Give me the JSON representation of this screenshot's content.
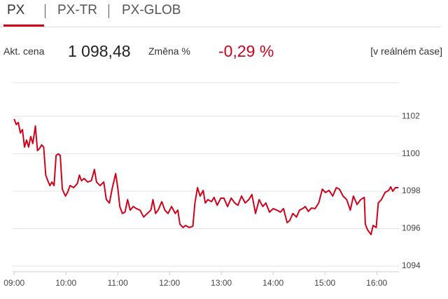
{
  "tabs": [
    "PX",
    "PX-TR",
    "PX-GLOB"
  ],
  "quote": {
    "label": "Akt. cena",
    "price": "1 098,48",
    "change_label": "Změna %",
    "change": "-0,29 %",
    "realtime": "[v reálném čase]"
  },
  "chart_data": {
    "type": "line",
    "color": "#d0021b",
    "x": [
      9.0,
      9.04,
      9.08,
      9.12,
      9.16,
      9.2,
      9.24,
      9.28,
      9.32,
      9.36,
      9.41,
      9.45,
      9.49,
      9.53,
      9.57,
      9.61,
      9.65,
      9.69,
      9.73,
      9.77,
      9.81,
      9.85,
      9.89,
      9.93,
      9.99,
      10.03,
      10.08,
      10.15,
      10.22,
      10.26,
      10.3,
      10.35,
      10.42,
      10.49,
      10.55,
      10.59,
      10.66,
      10.73,
      10.78,
      10.84,
      10.89,
      10.96,
      11.0,
      11.04,
      11.09,
      11.14,
      11.19,
      11.24,
      11.3,
      11.36,
      11.43,
      11.5,
      11.57,
      11.64,
      11.68,
      11.73,
      11.78,
      11.85,
      11.91,
      11.97,
      12.04,
      12.11,
      12.16,
      12.2,
      12.26,
      12.31,
      12.38,
      12.45,
      12.49,
      12.54,
      12.59,
      12.65,
      12.69,
      12.74,
      12.81,
      12.86,
      12.92,
      12.99,
      13.05,
      13.12,
      13.19,
      13.26,
      13.32,
      13.39,
      13.46,
      13.53,
      13.59,
      13.66,
      13.73,
      13.8,
      13.86,
      13.93,
      14.0,
      14.07,
      14.14,
      14.2,
      14.27,
      14.32,
      14.38,
      14.45,
      14.51,
      14.57,
      14.62,
      14.68,
      14.74,
      14.81,
      14.88,
      14.95,
      15.01,
      15.08,
      15.15,
      15.22,
      15.28,
      15.35,
      15.42,
      15.49,
      15.55,
      15.62,
      15.69,
      15.76,
      15.78,
      15.82,
      15.89,
      15.93,
      15.99,
      16.03,
      16.09,
      16.16,
      16.23,
      16.27,
      16.31,
      16.36,
      16.42
    ],
    "values": [
      1101.86,
      1101.56,
      1101.67,
      1101.11,
      1101.29,
      1100.36,
      1100.73,
      1100.36,
      1100.92,
      1100.55,
      1101.48,
      1100.17,
      1100.28,
      1100.47,
      1100.36,
      1098.86,
      1098.56,
      1098.3,
      1098.49,
      1098.3,
      1099.91,
      1099.99,
      1099.91,
      1098.11,
      1097.74,
      1097.93,
      1098.3,
      1098.19,
      1098.41,
      1098.86,
      1098.56,
      1098.68,
      1098.49,
      1098.56,
      1099.16,
      1098.49,
      1098.3,
      1098.49,
      1097.55,
      1097.37,
      1098.11,
      1098.94,
      1098.19,
      1097.18,
      1096.81,
      1096.88,
      1097.55,
      1096.99,
      1097.18,
      1097.07,
      1096.99,
      1096.62,
      1096.81,
      1096.99,
      1097.55,
      1096.81,
      1096.99,
      1097.44,
      1096.99,
      1096.81,
      1097.18,
      1096.81,
      1096.99,
      1096.24,
      1096.06,
      1096.17,
      1096.06,
      1096.13,
      1097.37,
      1098.19,
      1097.74,
      1098.04,
      1097.37,
      1097.55,
      1097.44,
      1097.67,
      1097.25,
      1097.63,
      1097.63,
      1097.18,
      1097.63,
      1097.37,
      1097.25,
      1097.74,
      1097.37,
      1097.55,
      1097.82,
      1096.81,
      1097.55,
      1097.18,
      1097.37,
      1096.88,
      1097.07,
      1096.99,
      1096.88,
      1097.07,
      1096.32,
      1096.43,
      1096.81,
      1096.62,
      1096.99,
      1097.07,
      1097.18,
      1096.92,
      1097.1,
      1097.07,
      1097.37,
      1098.11,
      1097.93,
      1098.04,
      1097.74,
      1098.19,
      1098.11,
      1097.74,
      1097.55,
      1096.99,
      1097.74,
      1097.29,
      1097.55,
      1097.67,
      1096.24,
      1095.95,
      1095.68,
      1096.17,
      1096.06,
      1097.37,
      1097.55,
      1097.93,
      1098.04,
      1098.23,
      1098.0,
      1098.19,
      1098.19
    ],
    "xlim": [
      8.97,
      16.43
    ],
    "xticks": [
      {
        "value": 9,
        "label": "09:00"
      },
      {
        "value": 10,
        "label": "10:00"
      },
      {
        "value": 11,
        "label": "11:00"
      },
      {
        "value": 12,
        "label": "12:00"
      },
      {
        "value": 13,
        "label": "13:00"
      },
      {
        "value": 14,
        "label": "14:00"
      },
      {
        "value": 15,
        "label": "15:00"
      },
      {
        "value": 16,
        "label": "16:00"
      }
    ],
    "ylim": [
      1093.7,
      1103.8
    ],
    "yticks": [
      1094,
      1096,
      1098,
      1100,
      1102
    ],
    "grid": true
  }
}
